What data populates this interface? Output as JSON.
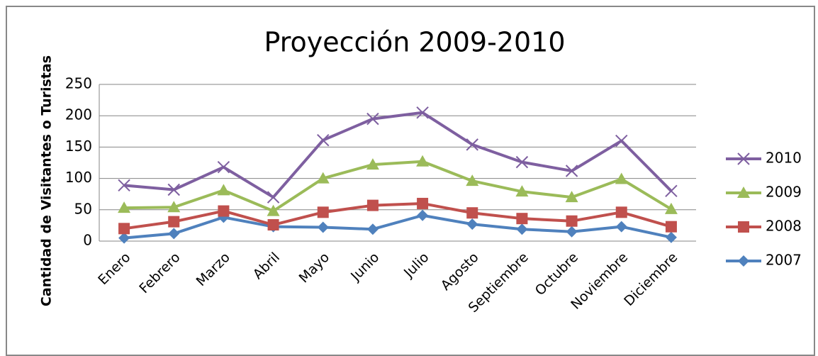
{
  "chart_data": {
    "type": "line",
    "title": "Proyección 2009-2010",
    "y_label": "Cantidad de Visitantes o Turistas",
    "categories": [
      "Enero",
      "Febrero",
      "Marzo",
      "Abril",
      "Mayo",
      "Junio",
      "Julio",
      "Agosto",
      "Septiembre",
      "Octubre",
      "Noviembre",
      "Diciembre"
    ],
    "series": [
      {
        "name": "2010",
        "color": "#7e5fa0",
        "marker": "x",
        "values": [
          89,
          82,
          118,
          70,
          161,
          195,
          205,
          154,
          126,
          112,
          160,
          80
        ]
      },
      {
        "name": "2009",
        "color": "#9bbb59",
        "marker": "triangle",
        "values": [
          53,
          54,
          81,
          48,
          100,
          122,
          127,
          96,
          79,
          70,
          99,
          51
        ]
      },
      {
        "name": "2008",
        "color": "#c0504d",
        "marker": "square",
        "values": [
          20,
          31,
          48,
          26,
          46,
          57,
          60,
          45,
          36,
          32,
          46,
          23
        ]
      },
      {
        "name": "2007",
        "color": "#4f81bd",
        "marker": "diamond",
        "values": [
          5,
          12,
          38,
          23,
          22,
          19,
          41,
          27,
          19,
          15,
          23,
          6
        ]
      }
    ],
    "ylim": [
      0,
      250
    ],
    "yticks": [
      0,
      50,
      100,
      150,
      200,
      250
    ],
    "grid": true,
    "legend": "right"
  }
}
